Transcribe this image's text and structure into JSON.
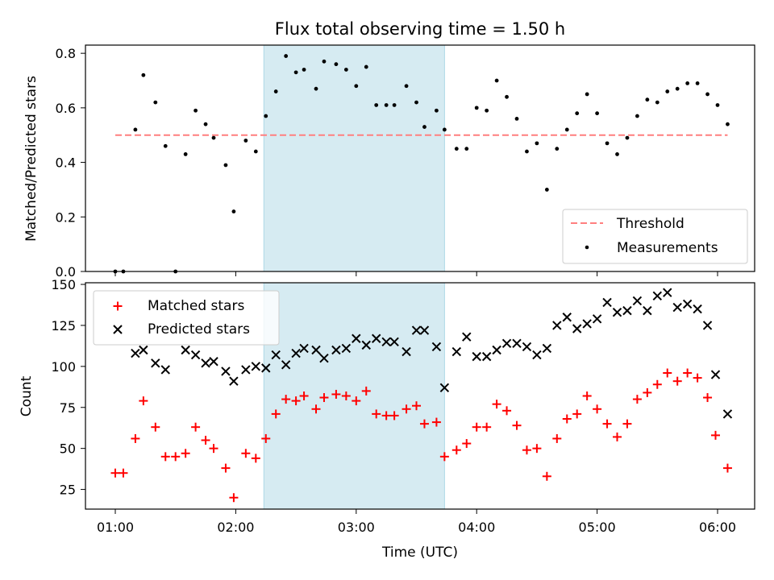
{
  "chart_data": [
    {
      "type": "scatter",
      "title": "Flux total observing time = 1.50 h",
      "ylabel": "Matched/Predicted stars",
      "xlabel": "",
      "ylim": [
        0,
        0.83
      ],
      "yticks": [
        "0.0",
        "0.2",
        "0.4",
        "0.6",
        "0.8"
      ],
      "x_tick_labels": [
        "01:00",
        "02:00",
        "03:00",
        "04:00",
        "05:00",
        "06:00"
      ],
      "shaded_interval": [
        "02:14",
        "03:44"
      ],
      "grid": false,
      "legend": "lower-right",
      "threshold": {
        "name": "Threshold",
        "value": 0.5,
        "color": "#ff7f7f",
        "x_start": "01:00",
        "x_end": "06:05"
      },
      "measurements": {
        "name": "Measurements",
        "color": "#000000",
        "points": [
          [
            "01:00",
            0.0
          ],
          [
            "01:04",
            0.0
          ],
          [
            "01:10",
            0.52
          ],
          [
            "01:14",
            0.72
          ],
          [
            "01:20",
            0.62
          ],
          [
            "01:25",
            0.46
          ],
          [
            "01:30",
            0.0
          ],
          [
            "01:35",
            0.43
          ],
          [
            "01:40",
            0.59
          ],
          [
            "01:45",
            0.54
          ],
          [
            "01:49",
            0.49
          ],
          [
            "01:55",
            0.39
          ],
          [
            "01:59",
            0.22
          ],
          [
            "02:05",
            0.48
          ],
          [
            "02:10",
            0.44
          ],
          [
            "02:15",
            0.57
          ],
          [
            "02:20",
            0.66
          ],
          [
            "02:25",
            0.79
          ],
          [
            "02:30",
            0.73
          ],
          [
            "02:34",
            0.74
          ],
          [
            "02:40",
            0.67
          ],
          [
            "02:44",
            0.77
          ],
          [
            "02:50",
            0.76
          ],
          [
            "02:55",
            0.74
          ],
          [
            "03:00",
            0.68
          ],
          [
            "03:05",
            0.75
          ],
          [
            "03:10",
            0.61
          ],
          [
            "03:15",
            0.61
          ],
          [
            "03:19",
            0.61
          ],
          [
            "03:25",
            0.68
          ],
          [
            "03:30",
            0.62
          ],
          [
            "03:34",
            0.53
          ],
          [
            "03:40",
            0.59
          ],
          [
            "03:44",
            0.52
          ],
          [
            "03:50",
            0.45
          ],
          [
            "03:55",
            0.45
          ],
          [
            "04:00",
            0.6
          ],
          [
            "04:05",
            0.59
          ],
          [
            "04:10",
            0.7
          ],
          [
            "04:15",
            0.64
          ],
          [
            "04:20",
            0.56
          ],
          [
            "04:25",
            0.44
          ],
          [
            "04:30",
            0.47
          ],
          [
            "04:35",
            0.3
          ],
          [
            "04:40",
            0.45
          ],
          [
            "04:45",
            0.52
          ],
          [
            "04:50",
            0.58
          ],
          [
            "04:55",
            0.65
          ],
          [
            "05:00",
            0.58
          ],
          [
            "05:05",
            0.47
          ],
          [
            "05:10",
            0.43
          ],
          [
            "05:15",
            0.49
          ],
          [
            "05:20",
            0.57
          ],
          [
            "05:25",
            0.63
          ],
          [
            "05:30",
            0.62
          ],
          [
            "05:35",
            0.66
          ],
          [
            "05:40",
            0.67
          ],
          [
            "05:45",
            0.69
          ],
          [
            "05:50",
            0.69
          ],
          [
            "05:55",
            0.65
          ],
          [
            "06:00",
            0.61
          ],
          [
            "06:05",
            0.54
          ]
        ]
      }
    },
    {
      "type": "scatter",
      "title": "",
      "ylabel": "Count",
      "xlabel": "Time (UTC)",
      "ylim": [
        13,
        151
      ],
      "yticks": [
        "25",
        "50",
        "75",
        "100",
        "125",
        "150"
      ],
      "x_tick_labels": [
        "01:00",
        "02:00",
        "03:00",
        "04:00",
        "05:00",
        "06:00"
      ],
      "shaded_interval": [
        "02:14",
        "03:44"
      ],
      "grid": false,
      "legend": "upper-left",
      "series": [
        {
          "name": "Matched stars",
          "marker": "plus",
          "color": "#ff0000",
          "points": [
            [
              "01:00",
              35
            ],
            [
              "01:04",
              35
            ],
            [
              "01:10",
              56
            ],
            [
              "01:14",
              79
            ],
            [
              "01:20",
              63
            ],
            [
              "01:25",
              45
            ],
            [
              "01:30",
              45
            ],
            [
              "01:35",
              47
            ],
            [
              "01:40",
              63
            ],
            [
              "01:45",
              55
            ],
            [
              "01:49",
              50
            ],
            [
              "01:55",
              38
            ],
            [
              "01:59",
              20
            ],
            [
              "02:05",
              47
            ],
            [
              "02:10",
              44
            ],
            [
              "02:15",
              56
            ],
            [
              "02:20",
              71
            ],
            [
              "02:25",
              80
            ],
            [
              "02:30",
              79
            ],
            [
              "02:34",
              82
            ],
            [
              "02:40",
              74
            ],
            [
              "02:44",
              81
            ],
            [
              "02:50",
              83
            ],
            [
              "02:55",
              82
            ],
            [
              "03:00",
              79
            ],
            [
              "03:05",
              85
            ],
            [
              "03:10",
              71
            ],
            [
              "03:15",
              70
            ],
            [
              "03:19",
              70
            ],
            [
              "03:25",
              74
            ],
            [
              "03:30",
              76
            ],
            [
              "03:34",
              65
            ],
            [
              "03:40",
              66
            ],
            [
              "03:44",
              45
            ],
            [
              "03:50",
              49
            ],
            [
              "03:55",
              53
            ],
            [
              "04:00",
              63
            ],
            [
              "04:05",
              63
            ],
            [
              "04:10",
              77
            ],
            [
              "04:15",
              73
            ],
            [
              "04:20",
              64
            ],
            [
              "04:25",
              49
            ],
            [
              "04:30",
              50
            ],
            [
              "04:35",
              33
            ],
            [
              "04:40",
              56
            ],
            [
              "04:45",
              68
            ],
            [
              "04:50",
              71
            ],
            [
              "04:55",
              82
            ],
            [
              "05:00",
              74
            ],
            [
              "05:05",
              65
            ],
            [
              "05:10",
              57
            ],
            [
              "05:15",
              65
            ],
            [
              "05:20",
              80
            ],
            [
              "05:25",
              84
            ],
            [
              "05:30",
              89
            ],
            [
              "05:35",
              96
            ],
            [
              "05:40",
              91
            ],
            [
              "05:45",
              96
            ],
            [
              "05:50",
              93
            ],
            [
              "05:55",
              81
            ],
            [
              "05:59",
              58
            ],
            [
              "06:05",
              38
            ]
          ]
        },
        {
          "name": "Predicted stars",
          "marker": "x",
          "color": "#000000",
          "points": [
            [
              "01:10",
              108
            ],
            [
              "01:14",
              110
            ],
            [
              "01:20",
              102
            ],
            [
              "01:25",
              98
            ],
            [
              "01:35",
              110
            ],
            [
              "01:40",
              107
            ],
            [
              "01:45",
              102
            ],
            [
              "01:49",
              103
            ],
            [
              "01:55",
              97
            ],
            [
              "01:59",
              91
            ],
            [
              "02:05",
              98
            ],
            [
              "02:10",
              100
            ],
            [
              "02:15",
              99
            ],
            [
              "02:20",
              107
            ],
            [
              "02:25",
              101
            ],
            [
              "02:30",
              108
            ],
            [
              "02:34",
              111
            ],
            [
              "02:40",
              110
            ],
            [
              "02:44",
              105
            ],
            [
              "02:50",
              110
            ],
            [
              "02:55",
              111
            ],
            [
              "03:00",
              117
            ],
            [
              "03:05",
              113
            ],
            [
              "03:10",
              117
            ],
            [
              "03:15",
              115
            ],
            [
              "03:19",
              115
            ],
            [
              "03:25",
              109
            ],
            [
              "03:30",
              122
            ],
            [
              "03:34",
              122
            ],
            [
              "03:40",
              112
            ],
            [
              "03:44",
              87
            ],
            [
              "03:50",
              109
            ],
            [
              "03:55",
              118
            ],
            [
              "04:00",
              106
            ],
            [
              "04:05",
              106
            ],
            [
              "04:10",
              110
            ],
            [
              "04:15",
              114
            ],
            [
              "04:20",
              114
            ],
            [
              "04:25",
              112
            ],
            [
              "04:30",
              107
            ],
            [
              "04:35",
              111
            ],
            [
              "04:40",
              125
            ],
            [
              "04:45",
              130
            ],
            [
              "04:50",
              123
            ],
            [
              "04:55",
              126
            ],
            [
              "05:00",
              129
            ],
            [
              "05:05",
              139
            ],
            [
              "05:10",
              133
            ],
            [
              "05:15",
              134
            ],
            [
              "05:20",
              140
            ],
            [
              "05:25",
              134
            ],
            [
              "05:30",
              143
            ],
            [
              "05:35",
              145
            ],
            [
              "05:40",
              136
            ],
            [
              "05:45",
              138
            ],
            [
              "05:50",
              135
            ],
            [
              "05:55",
              125
            ],
            [
              "05:59",
              95
            ],
            [
              "06:05",
              71
            ]
          ]
        }
      ]
    }
  ]
}
